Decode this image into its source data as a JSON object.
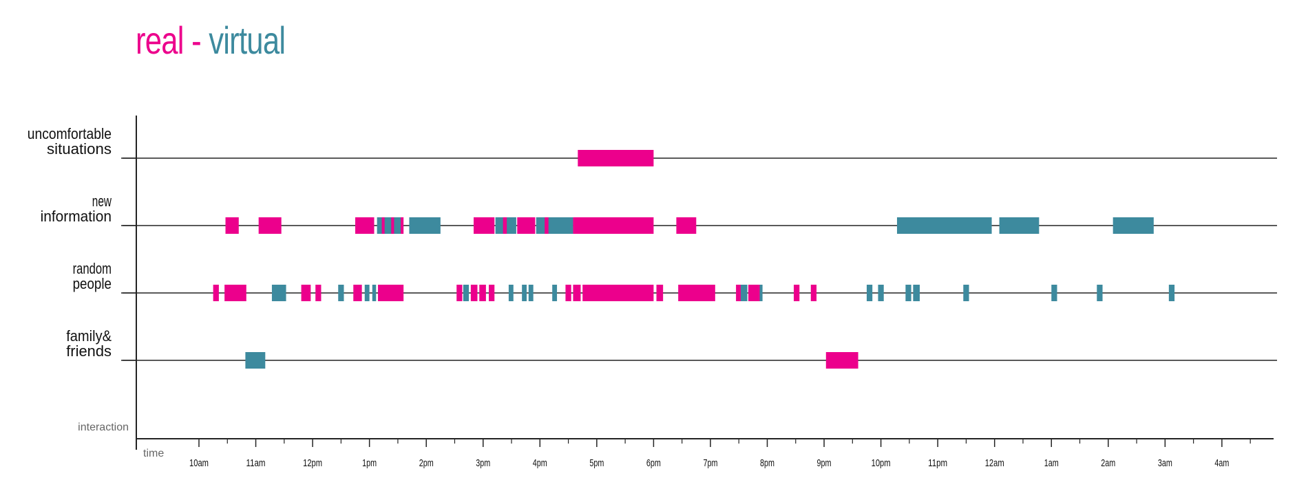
{
  "colors": {
    "real": "#ec008c",
    "virtual": "#3d8a9e",
    "axis": "#222222"
  },
  "title": {
    "real": "real",
    "separator": " - ",
    "virtual": "virtual"
  },
  "chart_data": {
    "type": "timeline",
    "title": "real - virtual",
    "xlabel": "time",
    "ylabel": "interaction",
    "x_ticks": [
      "10am",
      "11am",
      "12pm",
      "1pm",
      "2pm",
      "3pm",
      "4pm",
      "5pm",
      "6pm",
      "7pm",
      "8pm",
      "9pm",
      "10pm",
      "11pm",
      "12am",
      "1am",
      "2am",
      "3am",
      "4am"
    ],
    "xlim": [
      "09:47",
      "28:50"
    ],
    "legend": {
      "real": "real",
      "virtual": "virtual"
    },
    "rows": [
      {
        "label": [
          "uncomfortable",
          "situations"
        ],
        "segments": [
          {
            "type": "real",
            "start": "16:40",
            "end": "18:00"
          }
        ]
      },
      {
        "label": [
          "new",
          "information"
        ],
        "segments": [
          {
            "type": "real",
            "start": "10:28",
            "end": "10:42"
          },
          {
            "type": "real",
            "start": "11:03",
            "end": "11:27"
          },
          {
            "type": "real",
            "start": "12:45",
            "end": "13:05"
          },
          {
            "type": "virtual",
            "start": "13:08",
            "end": "13:35"
          },
          {
            "type": "real",
            "start": "13:13",
            "end": "13:16"
          },
          {
            "type": "real",
            "start": "13:23",
            "end": "13:26"
          },
          {
            "type": "real",
            "start": "13:33",
            "end": "13:36"
          },
          {
            "type": "virtual",
            "start": "13:42",
            "end": "14:15"
          },
          {
            "type": "real",
            "start": "14:50",
            "end": "15:12"
          },
          {
            "type": "virtual",
            "start": "15:13",
            "end": "15:35"
          },
          {
            "type": "real",
            "start": "15:21",
            "end": "15:25"
          },
          {
            "type": "real",
            "start": "15:36",
            "end": "15:55"
          },
          {
            "type": "virtual",
            "start": "15:56",
            "end": "16:35"
          },
          {
            "type": "real",
            "start": "16:05",
            "end": "16:09"
          },
          {
            "type": "real",
            "start": "16:35",
            "end": "18:00"
          },
          {
            "type": "real",
            "start": "18:24",
            "end": "18:45"
          },
          {
            "type": "virtual",
            "start": "22:17",
            "end": "23:57"
          },
          {
            "type": "virtual",
            "start": "24:05",
            "end": "24:47"
          },
          {
            "type": "virtual",
            "start": "26:05",
            "end": "26:48"
          }
        ]
      },
      {
        "label": [
          "random",
          "people"
        ],
        "segments": [
          {
            "type": "real",
            "start": "10:15",
            "end": "10:21"
          },
          {
            "type": "real",
            "start": "10:27",
            "end": "10:50"
          },
          {
            "type": "virtual",
            "start": "11:17",
            "end": "11:32"
          },
          {
            "type": "real",
            "start": "11:48",
            "end": "11:58"
          },
          {
            "type": "real",
            "start": "12:03",
            "end": "12:09"
          },
          {
            "type": "virtual",
            "start": "12:27",
            "end": "12:33"
          },
          {
            "type": "real",
            "start": "12:43",
            "end": "12:52"
          },
          {
            "type": "virtual",
            "start": "12:55",
            "end": "13:00"
          },
          {
            "type": "virtual",
            "start": "13:03",
            "end": "13:07"
          },
          {
            "type": "real",
            "start": "13:09",
            "end": "13:36"
          },
          {
            "type": "real",
            "start": "14:32",
            "end": "14:38"
          },
          {
            "type": "virtual",
            "start": "14:39",
            "end": "14:45"
          },
          {
            "type": "real",
            "start": "14:47",
            "end": "14:54"
          },
          {
            "type": "real",
            "start": "14:56",
            "end": "15:03"
          },
          {
            "type": "real",
            "start": "15:06",
            "end": "15:12"
          },
          {
            "type": "virtual",
            "start": "15:27",
            "end": "15:32"
          },
          {
            "type": "virtual",
            "start": "15:41",
            "end": "15:46"
          },
          {
            "type": "virtual",
            "start": "15:48",
            "end": "15:53"
          },
          {
            "type": "virtual",
            "start": "16:13",
            "end": "16:18"
          },
          {
            "type": "real",
            "start": "16:27",
            "end": "16:33"
          },
          {
            "type": "real",
            "start": "16:35",
            "end": "16:43"
          },
          {
            "type": "real",
            "start": "16:45",
            "end": "18:00"
          },
          {
            "type": "real",
            "start": "18:03",
            "end": "18:10"
          },
          {
            "type": "real",
            "start": "18:26",
            "end": "19:05"
          },
          {
            "type": "real",
            "start": "19:27",
            "end": "19:32"
          },
          {
            "type": "virtual",
            "start": "19:32",
            "end": "19:39"
          },
          {
            "type": "real",
            "start": "19:40",
            "end": "19:53"
          },
          {
            "type": "virtual",
            "start": "19:52",
            "end": "19:55"
          },
          {
            "type": "real",
            "start": "20:28",
            "end": "20:34"
          },
          {
            "type": "real",
            "start": "20:46",
            "end": "20:52"
          },
          {
            "type": "virtual",
            "start": "21:45",
            "end": "21:51"
          },
          {
            "type": "virtual",
            "start": "21:57",
            "end": "22:03"
          },
          {
            "type": "virtual",
            "start": "22:26",
            "end": "22:32"
          },
          {
            "type": "virtual",
            "start": "22:34",
            "end": "22:41"
          },
          {
            "type": "virtual",
            "start": "23:27",
            "end": "23:33"
          },
          {
            "type": "virtual",
            "start": "25:00",
            "end": "25:06"
          },
          {
            "type": "virtual",
            "start": "25:48",
            "end": "25:54"
          },
          {
            "type": "virtual",
            "start": "27:04",
            "end": "27:10"
          }
        ]
      },
      {
        "label": [
          "family&",
          "friends"
        ],
        "segments": [
          {
            "type": "virtual",
            "start": "10:49",
            "end": "11:10"
          },
          {
            "type": "real",
            "start": "21:02",
            "end": "21:36"
          }
        ]
      }
    ]
  }
}
